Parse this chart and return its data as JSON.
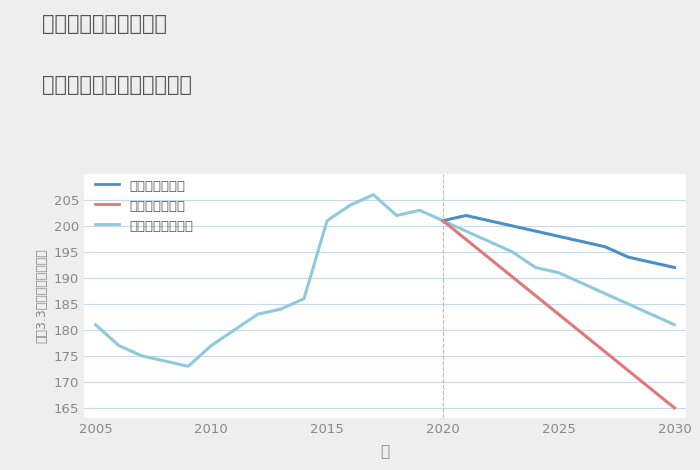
{
  "title_line1": "兵庫県西宮市中島町の",
  "title_line2": "中古マンションの価格推移",
  "xlabel": "年",
  "ylabel": "坪（3.3㎡）単価（万円）",
  "background_color": "#eeeeee",
  "plot_background_color": "#ffffff",
  "grid_color": "#c8d8e8",
  "title_color": "#555555",
  "axis_color": "#888888",
  "normal_scenario": {
    "label": "ノーマルシナリオ",
    "color": "#90c8dc",
    "years": [
      2005,
      2006,
      2007,
      2008,
      2009,
      2010,
      2011,
      2012,
      2013,
      2014,
      2015,
      2016,
      2017,
      2018,
      2019,
      2020,
      2021,
      2022,
      2023,
      2024,
      2025,
      2026,
      2027,
      2028,
      2029,
      2030
    ],
    "values": [
      181,
      177,
      175,
      174,
      173,
      177,
      180,
      183,
      184,
      186,
      201,
      204,
      206,
      202,
      203,
      201,
      199,
      197,
      195,
      192,
      191,
      189,
      187,
      185,
      183,
      181
    ]
  },
  "good_scenario": {
    "label": "グッドシナリオ",
    "color": "#4a90c4",
    "years": [
      2020,
      2021,
      2022,
      2023,
      2024,
      2025,
      2026,
      2027,
      2028,
      2029,
      2030
    ],
    "values": [
      201,
      202,
      201,
      200,
      199,
      198,
      197,
      196,
      194,
      193,
      192
    ]
  },
  "bad_scenario": {
    "label": "バッドシナリオ",
    "color": "#e07878",
    "years": [
      2020,
      2025,
      2030
    ],
    "values": [
      201,
      183,
      165
    ]
  },
  "ylim": [
    163,
    210
  ],
  "xlim": [
    2004.5,
    2030.5
  ],
  "yticks": [
    165,
    170,
    175,
    180,
    185,
    190,
    195,
    200,
    205
  ],
  "xticks": [
    2005,
    2010,
    2015,
    2020,
    2025,
    2030
  ]
}
